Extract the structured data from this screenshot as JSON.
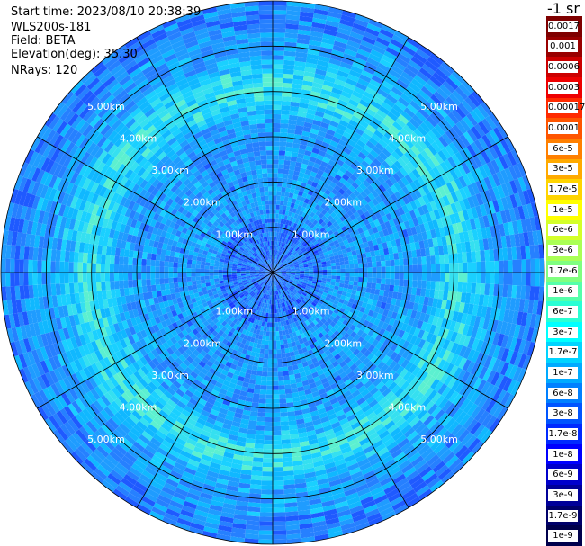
{
  "header": {
    "start_time": "Start time: 2023/08/10 20:38:39",
    "instrument": "WLS200s-181",
    "field": "Field: BETA",
    "elevation": "Elevation(deg): 35.30",
    "nrays": "NRays: 120"
  },
  "colorbar": {
    "unit": "-1 sr",
    "labels": [
      "0.0017",
      "0.001",
      "0.0006",
      "0.0003",
      "0.00017",
      "0.0001",
      "6e-5",
      "3e-5",
      "1.7e-5",
      "1e-5",
      "6e-6",
      "3e-6",
      "1.7e-6",
      "1e-6",
      "6e-7",
      "3e-7",
      "1.7e-7",
      "1e-7",
      "6e-8",
      "3e-8",
      "1.7e-8",
      "1e-8",
      "6e-9",
      "3e-9",
      "1.7e-9",
      "1e-9"
    ],
    "colors": [
      "#7f0000",
      "#990000",
      "#cc0000",
      "#ee0000",
      "#ff2a00",
      "#ff5500",
      "#ff8000",
      "#ffaa00",
      "#ffd400",
      "#ffff00",
      "#d4ff2a",
      "#aaff55",
      "#80ff80",
      "#55ffaa",
      "#2affd4",
      "#00ffff",
      "#00d4ff",
      "#00aaff",
      "#0080ff",
      "#0055ff",
      "#002aff",
      "#0000ff",
      "#0000cc",
      "#000099",
      "#00006a",
      "#00004c"
    ]
  },
  "chart_data": {
    "type": "heatmap",
    "title": "",
    "projection": "polar (PPI)",
    "field": "BETA",
    "unit": "-1 sr",
    "elevation_deg": 35.3,
    "nrays": 120,
    "range_rings_km": [
      1.0,
      2.0,
      3.0,
      4.0,
      5.0
    ],
    "range_ring_labels": [
      "1.00km",
      "2.00km",
      "3.00km",
      "4.00km",
      "5.00km"
    ],
    "max_range_km": 6.0,
    "azimuth_lines_deg": [
      0,
      30,
      60,
      90,
      120,
      150,
      180,
      210,
      240,
      270,
      300,
      330
    ],
    "dominant_value_range": [
      "1.7e-8",
      "1.7e-7"
    ],
    "notes_visible": "higher backscatter ring (~1e-7 to 3e-7) between 3.5 and 5 km; background around 3e-8 to 6e-8"
  }
}
